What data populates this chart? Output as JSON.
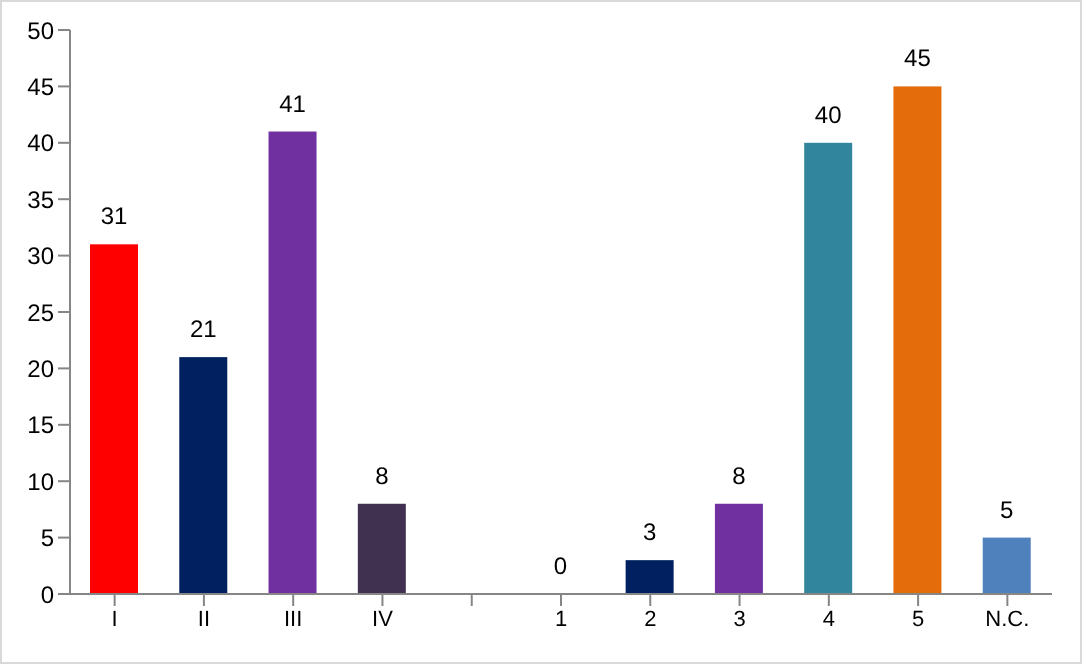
{
  "chart_data": {
    "type": "bar",
    "categories": [
      "I",
      "II",
      "III",
      "IV",
      null,
      "1",
      "2",
      "3",
      "4",
      "5",
      "N.C."
    ],
    "values": [
      31,
      21,
      41,
      8,
      null,
      0,
      3,
      8,
      40,
      45,
      5
    ],
    "colors": [
      "#ff0000",
      "#002060",
      "#7030a0",
      "#403151",
      null,
      "#7f7f7f",
      "#002060",
      "#7030a0",
      "#31859c",
      "#e46c0a",
      "#4f81bd"
    ],
    "ylim": [
      0,
      50
    ],
    "yticks": [
      0,
      5,
      10,
      15,
      20,
      25,
      30,
      35,
      40,
      45,
      50
    ],
    "grid": false,
    "data_labels": true
  }
}
